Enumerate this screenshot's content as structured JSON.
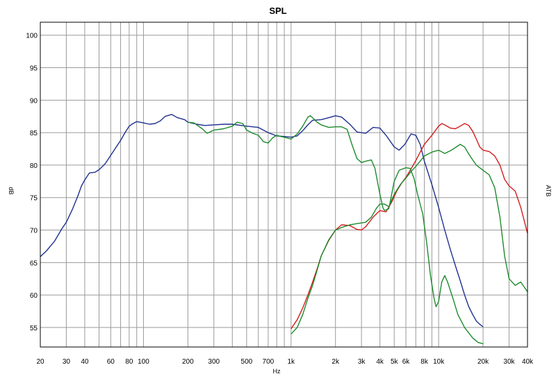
{
  "chart_data": {
    "type": "line",
    "title": "SPL",
    "xlabel": "Hz",
    "ylabel": "dB",
    "ylabel_right": "ATB",
    "x_scale": "log",
    "xlim": [
      20,
      40000
    ],
    "ylim": [
      52,
      102
    ],
    "grid": true,
    "legend": "none",
    "x_ticks": [
      {
        "value": 20,
        "label": "20"
      },
      {
        "value": 30,
        "label": "30"
      },
      {
        "value": 40,
        "label": "40"
      },
      {
        "value": 60,
        "label": "60"
      },
      {
        "value": 80,
        "label": "80"
      },
      {
        "value": 100,
        "label": "100"
      },
      {
        "value": 200,
        "label": "200"
      },
      {
        "value": 300,
        "label": "300"
      },
      {
        "value": 500,
        "label": "500"
      },
      {
        "value": 700,
        "label": "700"
      },
      {
        "value": 1000,
        "label": "1k"
      },
      {
        "value": 2000,
        "label": "2k"
      },
      {
        "value": 3000,
        "label": "3k"
      },
      {
        "value": 4000,
        "label": "4k"
      },
      {
        "value": 5000,
        "label": "5k"
      },
      {
        "value": 6000,
        "label": "6k"
      },
      {
        "value": 8000,
        "label": "8k"
      },
      {
        "value": 10000,
        "label": "10k"
      },
      {
        "value": 20000,
        "label": "20k"
      },
      {
        "value": 30000,
        "label": "30k"
      },
      {
        "value": 40000,
        "label": "40k"
      }
    ],
    "y_ticks": [
      55,
      60,
      65,
      70,
      75,
      80,
      85,
      90,
      95,
      100
    ],
    "series": [
      {
        "color": "#1f2f8f",
        "points": [
          [
            20,
            65.9
          ],
          [
            22,
            66.8
          ],
          [
            25,
            68.3
          ],
          [
            28,
            70.2
          ],
          [
            30,
            71.2
          ],
          [
            33,
            73.2
          ],
          [
            36,
            75.3
          ],
          [
            38,
            76.8
          ],
          [
            40,
            77.7
          ],
          [
            43,
            78.8
          ],
          [
            47,
            78.9
          ],
          [
            50,
            79.3
          ],
          [
            55,
            80.2
          ],
          [
            60,
            81.5
          ],
          [
            65,
            82.7
          ],
          [
            70,
            83.8
          ],
          [
            75,
            85.0
          ],
          [
            80,
            86.0
          ],
          [
            85,
            86.4
          ],
          [
            90,
            86.7
          ],
          [
            100,
            86.5
          ],
          [
            110,
            86.3
          ],
          [
            120,
            86.4
          ],
          [
            130,
            86.8
          ],
          [
            140,
            87.5
          ],
          [
            155,
            87.8
          ],
          [
            170,
            87.3
          ],
          [
            190,
            87.0
          ],
          [
            200,
            86.6
          ],
          [
            230,
            86.3
          ],
          [
            260,
            86.1
          ],
          [
            300,
            86.2
          ],
          [
            350,
            86.3
          ],
          [
            400,
            86.3
          ],
          [
            500,
            86.0
          ],
          [
            600,
            85.8
          ],
          [
            700,
            85.0
          ],
          [
            800,
            84.5
          ],
          [
            900,
            84.4
          ],
          [
            1000,
            84.3
          ],
          [
            1100,
            84.5
          ],
          [
            1200,
            85.3
          ],
          [
            1300,
            86.2
          ],
          [
            1400,
            86.9
          ],
          [
            1600,
            87.0
          ],
          [
            1800,
            87.3
          ],
          [
            2000,
            87.6
          ],
          [
            2200,
            87.4
          ],
          [
            2500,
            86.3
          ],
          [
            2800,
            85.1
          ],
          [
            3200,
            84.9
          ],
          [
            3600,
            85.8
          ],
          [
            4000,
            85.7
          ],
          [
            4400,
            84.6
          ],
          [
            5000,
            82.8
          ],
          [
            5400,
            82.3
          ],
          [
            5900,
            83.2
          ],
          [
            6500,
            84.8
          ],
          [
            7000,
            84.6
          ],
          [
            7500,
            83.2
          ],
          [
            8000,
            80.6
          ],
          [
            9000,
            77.0
          ],
          [
            10000,
            73.5
          ],
          [
            11000,
            70.0
          ],
          [
            12000,
            67.0
          ],
          [
            13000,
            64.5
          ],
          [
            14000,
            62.2
          ],
          [
            15000,
            60.0
          ],
          [
            16000,
            58.2
          ],
          [
            17000,
            57.0
          ],
          [
            18000,
            56.0
          ],
          [
            19000,
            55.5
          ],
          [
            20000,
            55.1
          ]
        ]
      },
      {
        "color": "#d41c1c",
        "points": [
          [
            1000,
            54.8
          ],
          [
            1100,
            56.2
          ],
          [
            1200,
            58.0
          ],
          [
            1300,
            60.0
          ],
          [
            1400,
            62.0
          ],
          [
            1500,
            64.0
          ],
          [
            1600,
            66.0
          ],
          [
            1800,
            68.4
          ],
          [
            2000,
            70.0
          ],
          [
            2200,
            70.8
          ],
          [
            2500,
            70.7
          ],
          [
            2800,
            70.1
          ],
          [
            3000,
            70.0
          ],
          [
            3200,
            70.5
          ],
          [
            3600,
            72.0
          ],
          [
            4000,
            73.0
          ],
          [
            4400,
            72.8
          ],
          [
            4800,
            74.3
          ],
          [
            5200,
            76.0
          ],
          [
            5600,
            77.2
          ],
          [
            6000,
            78.1
          ],
          [
            6500,
            79.4
          ],
          [
            7000,
            80.7
          ],
          [
            7500,
            82.0
          ],
          [
            8000,
            83.2
          ],
          [
            9000,
            84.6
          ],
          [
            10000,
            86.0
          ],
          [
            10500,
            86.4
          ],
          [
            11000,
            86.2
          ],
          [
            12000,
            85.7
          ],
          [
            13000,
            85.6
          ],
          [
            14000,
            86.0
          ],
          [
            15000,
            86.4
          ],
          [
            16000,
            86.1
          ],
          [
            17000,
            85.2
          ],
          [
            18000,
            84.0
          ],
          [
            19000,
            82.8
          ],
          [
            20000,
            82.3
          ],
          [
            22000,
            82.1
          ],
          [
            24000,
            81.4
          ],
          [
            26000,
            80.0
          ],
          [
            28000,
            77.8
          ],
          [
            30000,
            76.8
          ],
          [
            33000,
            76.0
          ],
          [
            36000,
            73.5
          ],
          [
            40000,
            69.5
          ]
        ]
      },
      {
        "color": "#1c8a2c",
        "points": [
          [
            200,
            86.6
          ],
          [
            220,
            86.5
          ],
          [
            250,
            85.6
          ],
          [
            270,
            84.9
          ],
          [
            300,
            85.4
          ],
          [
            350,
            85.6
          ],
          [
            400,
            86.0
          ],
          [
            430,
            86.6
          ],
          [
            470,
            86.4
          ],
          [
            500,
            85.4
          ],
          [
            550,
            84.9
          ],
          [
            600,
            84.6
          ],
          [
            650,
            83.6
          ],
          [
            700,
            83.4
          ],
          [
            750,
            84.2
          ],
          [
            800,
            84.6
          ],
          [
            850,
            84.4
          ],
          [
            900,
            84.3
          ],
          [
            1000,
            84.0
          ],
          [
            1100,
            84.8
          ],
          [
            1200,
            86.0
          ],
          [
            1300,
            87.4
          ],
          [
            1350,
            87.6
          ],
          [
            1400,
            87.3
          ],
          [
            1500,
            86.6
          ],
          [
            1600,
            86.2
          ],
          [
            1800,
            85.8
          ],
          [
            2000,
            85.9
          ],
          [
            2200,
            85.9
          ],
          [
            2400,
            85.5
          ],
          [
            2600,
            83.0
          ],
          [
            2800,
            81.0
          ],
          [
            3000,
            80.4
          ],
          [
            3200,
            80.6
          ],
          [
            3500,
            80.8
          ],
          [
            3700,
            79.5
          ],
          [
            4000,
            75.5
          ],
          [
            4200,
            73.4
          ],
          [
            4300,
            73.0
          ],
          [
            4600,
            73.3
          ],
          [
            5000,
            77.5
          ],
          [
            5400,
            79.2
          ],
          [
            6000,
            79.6
          ],
          [
            6400,
            79.5
          ],
          [
            6800,
            78.0
          ],
          [
            7200,
            75.5
          ],
          [
            7800,
            72.5
          ],
          [
            8300,
            68.0
          ],
          [
            8800,
            63.0
          ],
          [
            9300,
            59.5
          ],
          [
            9600,
            58.2
          ],
          [
            10000,
            59.0
          ],
          [
            10500,
            62.0
          ],
          [
            11000,
            63.0
          ],
          [
            11500,
            62.0
          ],
          [
            12500,
            59.5
          ],
          [
            13500,
            57.0
          ],
          [
            15000,
            55.0
          ],
          [
            17000,
            53.4
          ],
          [
            18500,
            52.7
          ],
          [
            20000,
            52.5
          ]
        ]
      },
      {
        "color": "#1c8a2c",
        "points": [
          [
            1000,
            54.0
          ],
          [
            1100,
            55.0
          ],
          [
            1200,
            57.0
          ],
          [
            1300,
            59.5
          ],
          [
            1400,
            61.5
          ],
          [
            1500,
            63.8
          ],
          [
            1600,
            66.0
          ],
          [
            1800,
            68.5
          ],
          [
            2000,
            70.0
          ],
          [
            2200,
            70.4
          ],
          [
            2500,
            70.8
          ],
          [
            2800,
            71.0
          ],
          [
            3200,
            71.2
          ],
          [
            3500,
            72.0
          ],
          [
            3800,
            73.4
          ],
          [
            4000,
            74.0
          ],
          [
            4300,
            74.0
          ],
          [
            4600,
            73.6
          ],
          [
            5000,
            75.5
          ],
          [
            5500,
            77.0
          ],
          [
            6000,
            78.0
          ],
          [
            6500,
            79.0
          ],
          [
            7000,
            79.8
          ],
          [
            8000,
            81.4
          ],
          [
            9000,
            82.0
          ],
          [
            10000,
            82.3
          ],
          [
            11000,
            81.8
          ],
          [
            12000,
            82.2
          ],
          [
            13000,
            82.7
          ],
          [
            14000,
            83.2
          ],
          [
            15000,
            82.8
          ],
          [
            16000,
            81.7
          ],
          [
            17000,
            80.8
          ],
          [
            18000,
            80.0
          ],
          [
            20000,
            79.2
          ],
          [
            22000,
            78.5
          ],
          [
            24000,
            76.5
          ],
          [
            26000,
            72.0
          ],
          [
            28000,
            66.0
          ],
          [
            30000,
            62.5
          ],
          [
            33000,
            61.5
          ],
          [
            36000,
            62.0
          ],
          [
            40000,
            60.5
          ]
        ]
      }
    ]
  }
}
